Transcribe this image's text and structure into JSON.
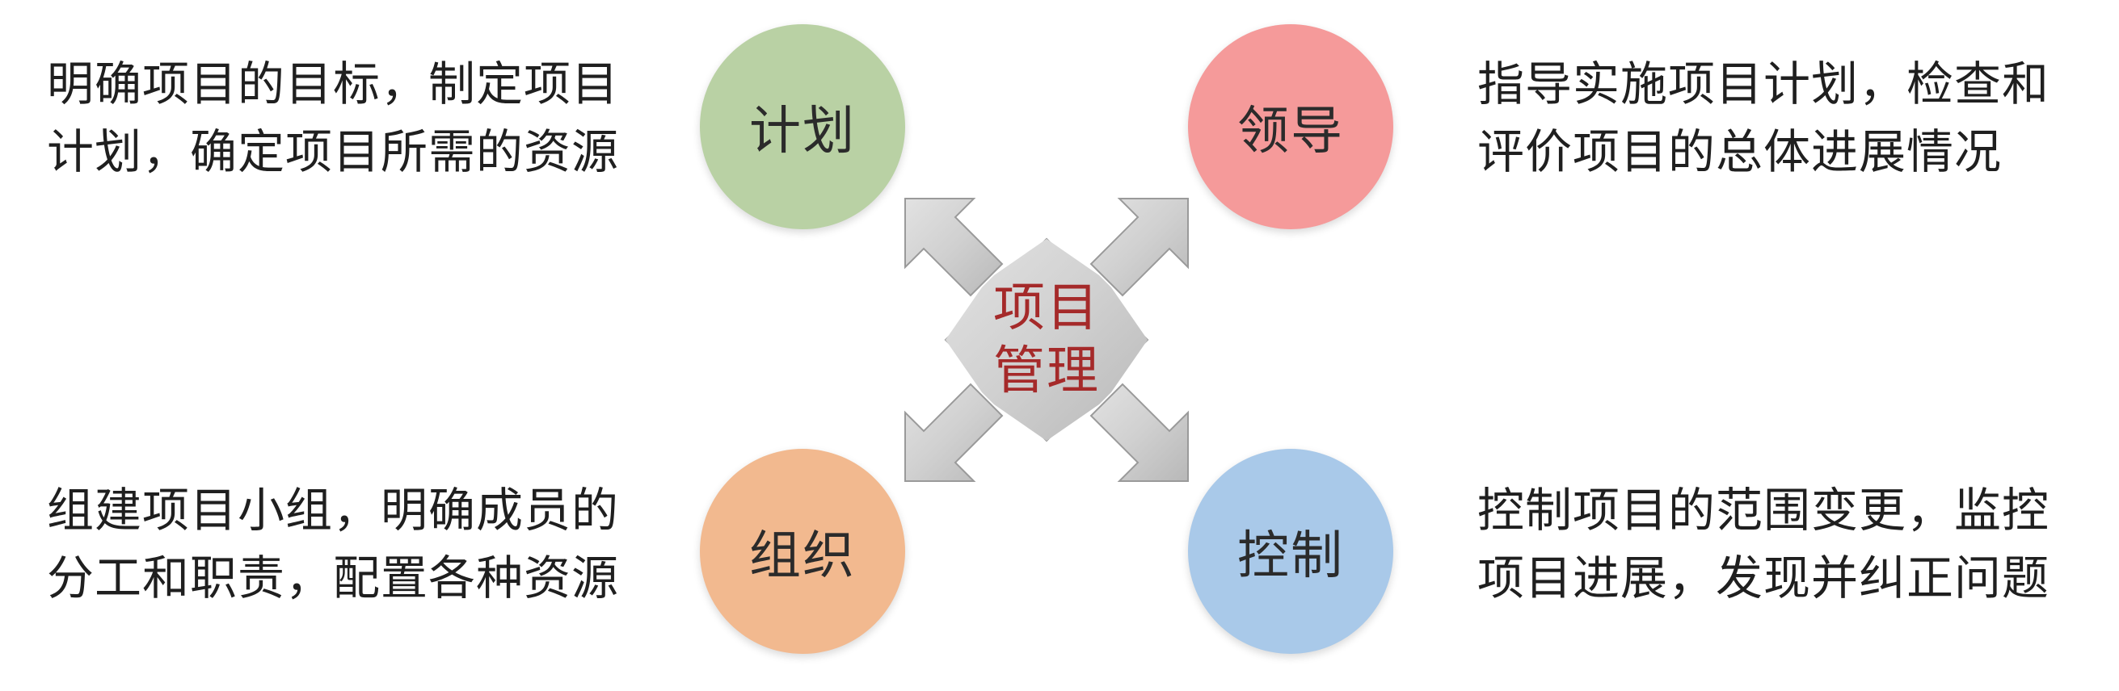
{
  "center": {
    "line1": "项目",
    "line2": "管理"
  },
  "nodes": {
    "plan": {
      "label": "计划",
      "color": "#b9d1a4",
      "desc_line1": "明确项目的目标，制定项目",
      "desc_line2": "计划，确定项目所需的资源"
    },
    "lead": {
      "label": "领导",
      "color": "#f59a9a",
      "desc_line1": "指导实施项目计划，检查和",
      "desc_line2": "评价项目的总体进展情况"
    },
    "organize": {
      "label": "组织",
      "color": "#f2b98f",
      "desc_line1": "组建项目小组，明确成员的",
      "desc_line2": "分工和职责，配置各种资源"
    },
    "control": {
      "label": "控制",
      "color": "#a9c9e9",
      "desc_line1": "控制项目的范围变更，监控",
      "desc_line2": "项目进展，发现并纠正问题"
    }
  },
  "colors": {
    "center_text": "#a52a2a",
    "arrow_fill": "#cfcfcf"
  }
}
